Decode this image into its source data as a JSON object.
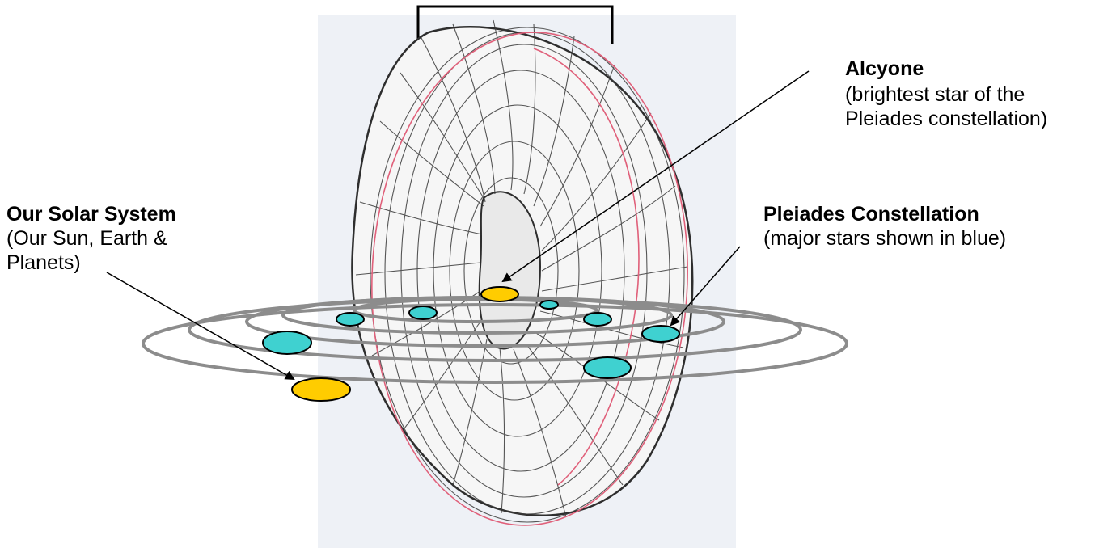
{
  "labels": {
    "solar_system": {
      "title": "Our Solar System",
      "line1": "(Our Sun, Earth &",
      "line2": "Planets)"
    },
    "alcyone": {
      "title": "Alcyone",
      "line1": "(brightest star of the",
      "line2": "Pleiades constellation)"
    },
    "pleiades": {
      "title": "Pleiades Constellation",
      "line1": "(major stars shown in blue)"
    }
  },
  "colors": {
    "star_blue": "#3fd1d0",
    "sun_yellow": "#ffcc00",
    "orbit_gray": "#8c8c8c",
    "torus_line": "#3a3a3a",
    "torus_red": "#e0607a",
    "paper": "#eef1f6"
  }
}
